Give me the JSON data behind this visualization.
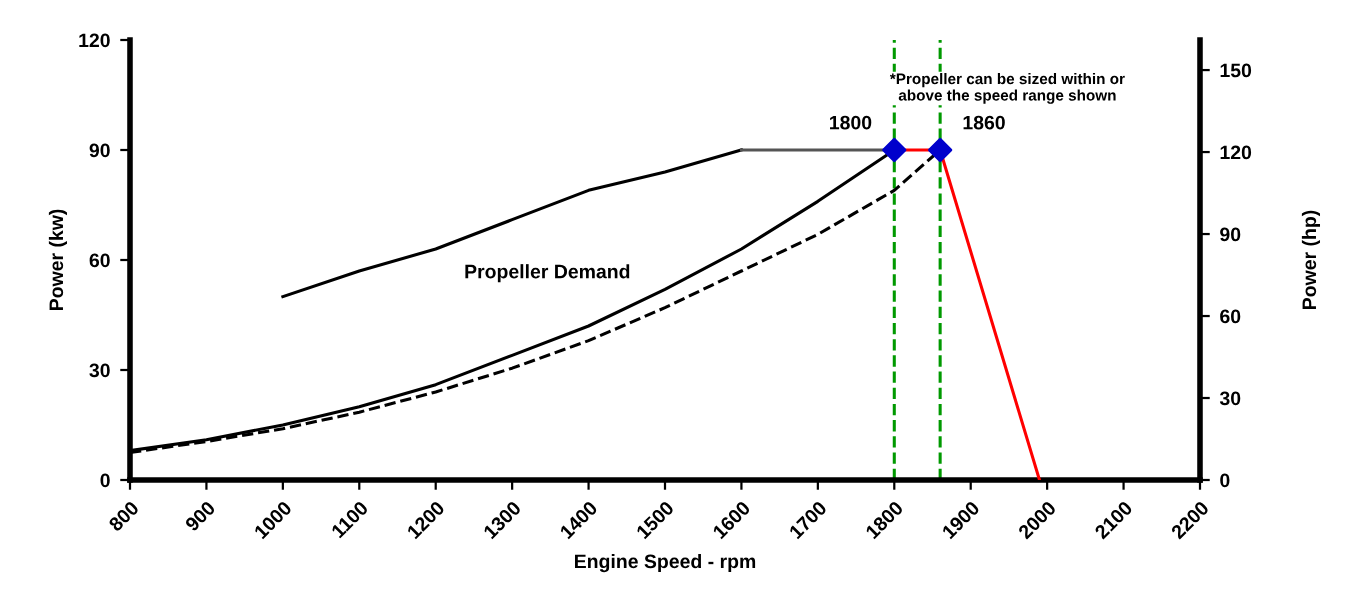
{
  "chart_data": {
    "type": "line",
    "xlabel": "Engine Speed - rpm",
    "ylabel": "Power (kw)",
    "y2label": "Power (hp)",
    "xlim": [
      800,
      2200
    ],
    "xticks": [
      800,
      900,
      1000,
      1100,
      1200,
      1300,
      1400,
      1500,
      1600,
      1700,
      1800,
      1900,
      2000,
      2100,
      2200
    ],
    "ylim": [
      0,
      120
    ],
    "yticks": [
      0,
      30,
      60,
      90,
      120
    ],
    "y2lim": [
      0,
      161
    ],
    "y2ticks": [
      0,
      30,
      60,
      90,
      120,
      150
    ],
    "grid": false,
    "legend": false,
    "marker": "none",
    "series": [
      {
        "color": "#000000",
        "x": [
          1000,
          1100,
          1200,
          1300,
          1400,
          1500,
          1600
        ],
        "values": [
          50,
          57,
          63,
          71,
          79,
          84,
          90
        ]
      },
      {
        "color": "#555555",
        "x": [
          1600,
          1800
        ],
        "values": [
          90,
          90
        ]
      },
      {
        "color": "#ff0000",
        "x": [
          1800,
          1860,
          1990
        ],
        "values": [
          90,
          90,
          0
        ]
      },
      {
        "color": "#000000",
        "x": [
          800,
          900,
          1000,
          1100,
          1200,
          1300,
          1400,
          1500,
          1600,
          1700,
          1800
        ],
        "values": [
          8,
          11,
          15,
          20,
          26,
          34,
          42,
          52,
          63,
          76,
          90
        ]
      },
      {
        "color": "#000000",
        "line_style": "dashed",
        "x": [
          800,
          900,
          1000,
          1100,
          1200,
          1300,
          1400,
          1500,
          1600,
          1700,
          1800,
          1860
        ],
        "values": [
          7.5,
          10.5,
          14,
          18.5,
          24,
          30.5,
          38,
          47,
          57,
          67,
          79,
          90
        ]
      },
      {
        "type": "scatter",
        "marker": "diamond",
        "color": "#0000cc",
        "x": [
          1800,
          1860
        ],
        "values": [
          90,
          90
        ]
      }
    ],
    "ref_lines": [
      {
        "axis": "x",
        "value": 1800,
        "color": "#009900",
        "line_style": "dashed"
      },
      {
        "axis": "x",
        "value": 1860,
        "color": "#009900",
        "line_style": "dashed"
      }
    ],
    "annotations": [
      {
        "text": "1800",
        "x": 1800,
        "y": 90
      },
      {
        "text": "1860",
        "x": 1860,
        "y": 90
      },
      "Propeller Demand",
      "*Propeller can be sized within or\nabove the speed range shown"
    ]
  }
}
